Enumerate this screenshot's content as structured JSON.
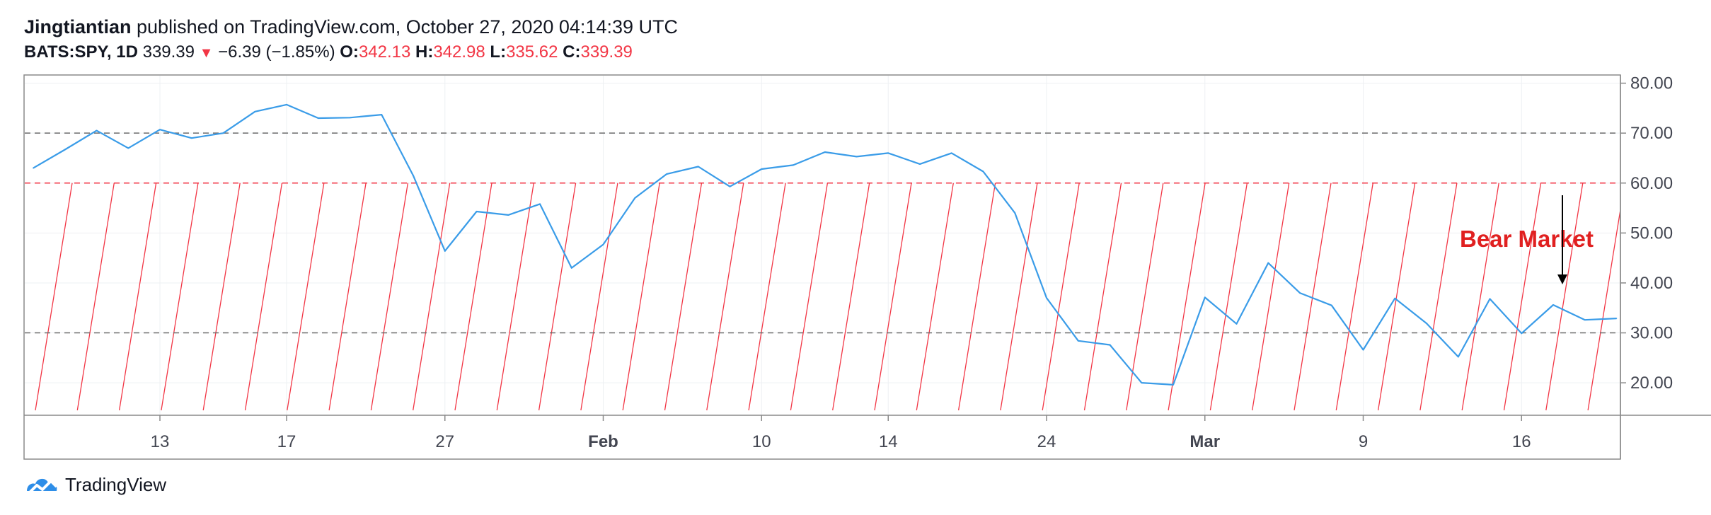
{
  "header": {
    "author": "Jingtiantian",
    "published": " published on TradingView.com, October 27, 2020 04:14:39 UTC",
    "symbol": "BATS:SPY, 1D",
    "price": "339.39",
    "change_arrow": "▼",
    "change": "−6.39 (−1.85%)",
    "o_label": "O:",
    "o_value": "342.13",
    "h_label": "H:",
    "h_value": "342.98",
    "l_label": "L:",
    "l_value": "335.62",
    "c_label": "C:",
    "c_value": "339.39"
  },
  "footer": {
    "brand": "TradingView",
    "logo_icon": "tradingview-logo-icon"
  },
  "colors": {
    "line": "#3a9ce8",
    "red_hatch": "#f23645",
    "gray_dash": "#6b6b6b",
    "grid": "#eef0f3",
    "annotation": "#e02020"
  },
  "chart_data": {
    "type": "line",
    "ylim": [
      13.5,
      81.5
    ],
    "y_ticks": [
      "80.00",
      "70.00",
      "60.00",
      "50.00",
      "40.00",
      "30.00",
      "20.00"
    ],
    "x_ticks": [
      {
        "label": "13",
        "bold": false,
        "at": 4
      },
      {
        "label": "17",
        "bold": false,
        "at": 8
      },
      {
        "label": "27",
        "bold": false,
        "at": 13
      },
      {
        "label": "Feb",
        "bold": true,
        "at": 18
      },
      {
        "label": "10",
        "bold": false,
        "at": 23
      },
      {
        "label": "14",
        "bold": false,
        "at": 27
      },
      {
        "label": "24",
        "bold": false,
        "at": 32
      },
      {
        "label": "Mar",
        "bold": true,
        "at": 37
      },
      {
        "label": "9",
        "bold": false,
        "at": 42
      },
      {
        "label": "16",
        "bold": false,
        "at": 47
      }
    ],
    "series": [
      {
        "values": [
          63.0,
          66.7,
          70.5,
          67.0,
          70.7,
          69.0,
          70.0,
          74.3,
          75.7,
          73.0,
          73.1,
          73.7,
          61.5,
          46.4,
          54.3,
          53.6,
          55.8,
          43.0,
          47.7,
          57.0,
          61.8,
          63.3,
          59.3,
          62.8,
          63.6,
          66.2,
          65.3,
          66.0,
          63.8,
          66.0,
          62.3,
          54.0,
          37.0,
          28.4,
          27.6,
          20.0,
          19.6,
          37.1,
          31.8,
          44.0,
          38.0,
          35.5,
          26.6,
          36.9,
          31.9,
          25.2,
          36.8,
          29.9,
          35.6,
          32.6,
          32.9
        ]
      }
    ],
    "hlines": [
      {
        "y": 70,
        "style": "gray-dashed"
      },
      {
        "y": 60,
        "style": "red-dashed"
      },
      {
        "y": 30,
        "style": "gray-dashed"
      }
    ],
    "annotations": [
      {
        "text": "Bear Market",
        "arrow": "down"
      }
    ],
    "grid": true
  }
}
